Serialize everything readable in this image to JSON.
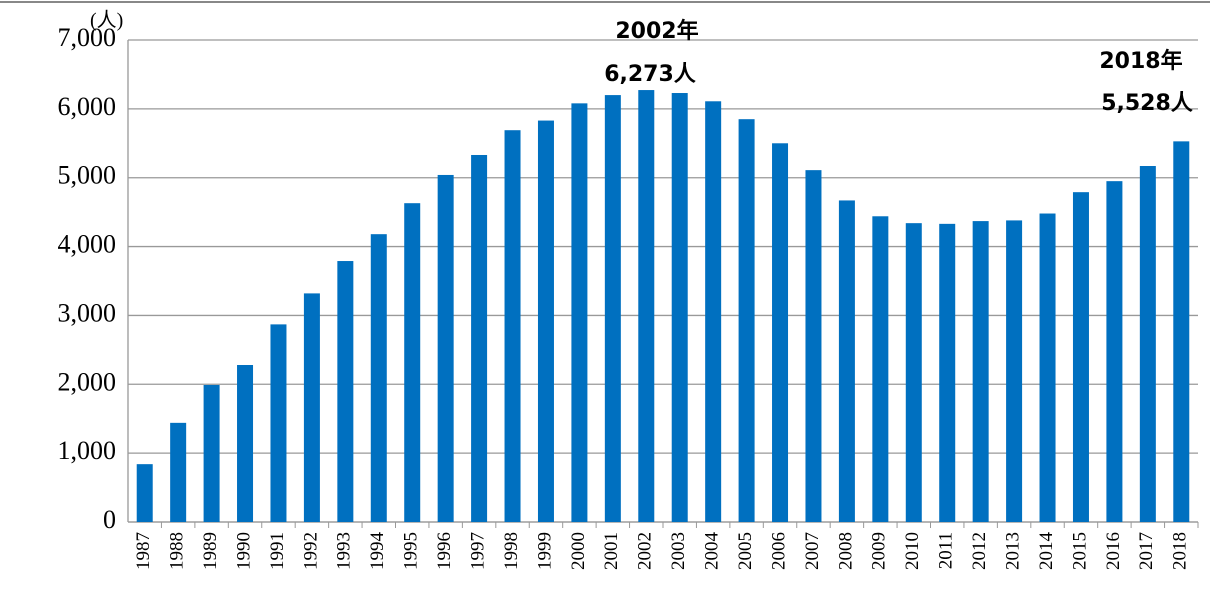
{
  "chart_data": {
    "type": "bar",
    "unit_label": "(人)",
    "categories": [
      "1987",
      "1988",
      "1989",
      "1990",
      "1991",
      "1992",
      "1993",
      "1994",
      "1995",
      "1996",
      "1997",
      "1998",
      "1999",
      "2000",
      "2001",
      "2002",
      "2003",
      "2004",
      "2005",
      "2006",
      "2007",
      "2008",
      "2009",
      "2010",
      "2011",
      "2012",
      "2013",
      "2014",
      "2015",
      "2016",
      "2017",
      "2018"
    ],
    "values": [
      840,
      1440,
      1990,
      2280,
      2870,
      3320,
      3790,
      4180,
      4630,
      5040,
      5330,
      5690,
      5830,
      6080,
      6200,
      6273,
      6230,
      6110,
      5850,
      5500,
      5110,
      4670,
      4440,
      4340,
      4330,
      4370,
      4380,
      4480,
      4790,
      4950,
      5170,
      5528
    ],
    "color": "#0070c0",
    "ylim": [
      0,
      7000
    ],
    "yticks": [
      0,
      {
        "value": 1000,
        "label": "1,000"
      },
      {
        "value": 2000,
        "label": "2,000"
      },
      {
        "value": 3000,
        "label": "3,000"
      },
      {
        "value": 4000,
        "label": "4,000"
      },
      {
        "value": 5000,
        "label": "5,000"
      },
      {
        "value": 6000,
        "label": "6,000"
      },
      {
        "value": 7000,
        "label": "7,000"
      }
    ],
    "grid": true,
    "annotations": [
      "2002年",
      "6,273人",
      "2018年",
      "5,528人"
    ]
  }
}
